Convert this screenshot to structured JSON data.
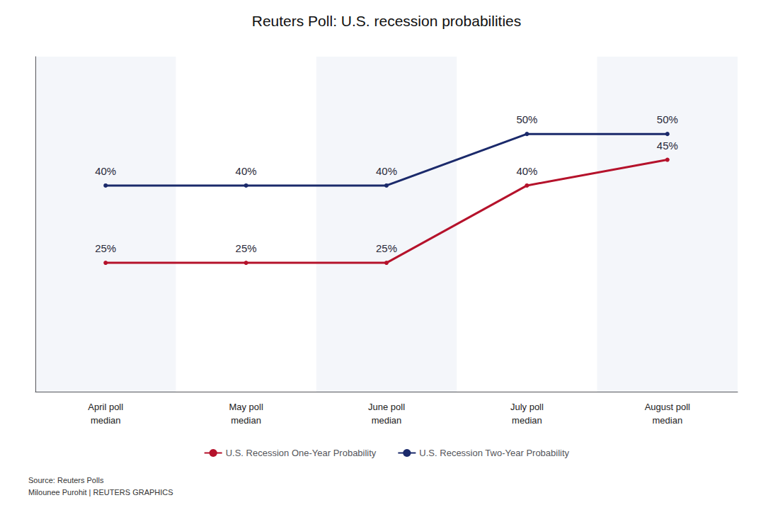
{
  "chart_data": {
    "type": "line",
    "title": "Reuters Poll: U.S. recession probabilities",
    "categories": [
      "April poll\nmedian",
      "May poll\nmedian",
      "June poll\nmedian",
      "July poll\nmedian",
      "August poll\nmedian"
    ],
    "series": [
      {
        "name": "U.S. Recession One-Year Probability",
        "color": "#b5122b",
        "values": [
          25,
          25,
          25,
          40,
          45
        ],
        "value_labels": [
          "25%",
          "25%",
          "25%",
          "40%",
          "45%"
        ]
      },
      {
        "name": "U.S. Recession Two-Year Probability",
        "color": "#1b2a6b",
        "values": [
          40,
          40,
          40,
          50,
          50
        ],
        "value_labels": [
          "40%",
          "40%",
          "40%",
          "50%",
          "50%"
        ]
      }
    ],
    "ylim": [
      0,
      65
    ],
    "tick_labels": "x",
    "grid": false,
    "legend": "bottom",
    "data_labels": true,
    "annotations": [
      "Source: Reuters Polls",
      "Milounee Purohit | REUTERS GRAPHICS"
    ]
  }
}
